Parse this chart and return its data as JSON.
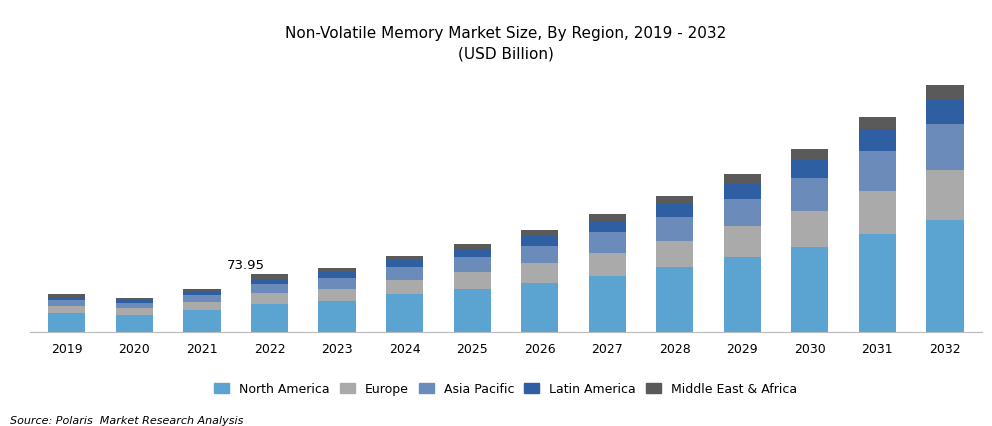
{
  "title_line1": "Non-Volatile Memory Market Size, By Region, 2019 - 2032",
  "title_line2": "(USD Billion)",
  "source": "Source: Polaris  Market Research Analysis",
  "years": [
    2019,
    2020,
    2021,
    2022,
    2023,
    2024,
    2025,
    2026,
    2027,
    2028,
    2029,
    2030,
    2031,
    2032
  ],
  "annotation_year": 2022,
  "annotation_text": "73.95",
  "regions": [
    "North America",
    "Europe",
    "Asia Pacific",
    "Latin America",
    "Middle East & Africa"
  ],
  "colors": [
    "#5BA3D0",
    "#AAAAAA",
    "#6B8CBA",
    "#2E5FA3",
    "#5A5A5A"
  ],
  "data": {
    "North America": [
      24.0,
      22.5,
      28.0,
      36.0,
      40.0,
      48.0,
      55.0,
      63.0,
      72.0,
      83.0,
      96.0,
      108.0,
      125.0,
      143.0
    ],
    "Europe": [
      9.5,
      8.5,
      10.5,
      14.0,
      15.5,
      18.5,
      21.5,
      25.0,
      29.0,
      33.5,
      38.5,
      46.0,
      55.0,
      63.0
    ],
    "Asia Pacific": [
      7.5,
      6.5,
      8.5,
      11.0,
      13.0,
      16.0,
      18.5,
      22.0,
      26.0,
      30.0,
      35.0,
      42.0,
      50.0,
      58.0
    ],
    "Latin America": [
      4.0,
      3.5,
      4.5,
      6.5,
      7.5,
      9.0,
      10.5,
      12.5,
      14.5,
      17.0,
      20.0,
      23.5,
      28.0,
      32.0
    ],
    "Middle East & Africa": [
      3.0,
      2.5,
      3.5,
      6.45,
      5.0,
      6.0,
      6.5,
      7.5,
      8.5,
      10.0,
      11.5,
      13.5,
      16.0,
      18.5
    ]
  },
  "ylim": [
    0,
    330
  ],
  "bar_width": 0.55,
  "background_color": "#ffffff",
  "annotation_fontsize": 9.5,
  "legend_fontsize": 9,
  "title_fontsize": 11
}
